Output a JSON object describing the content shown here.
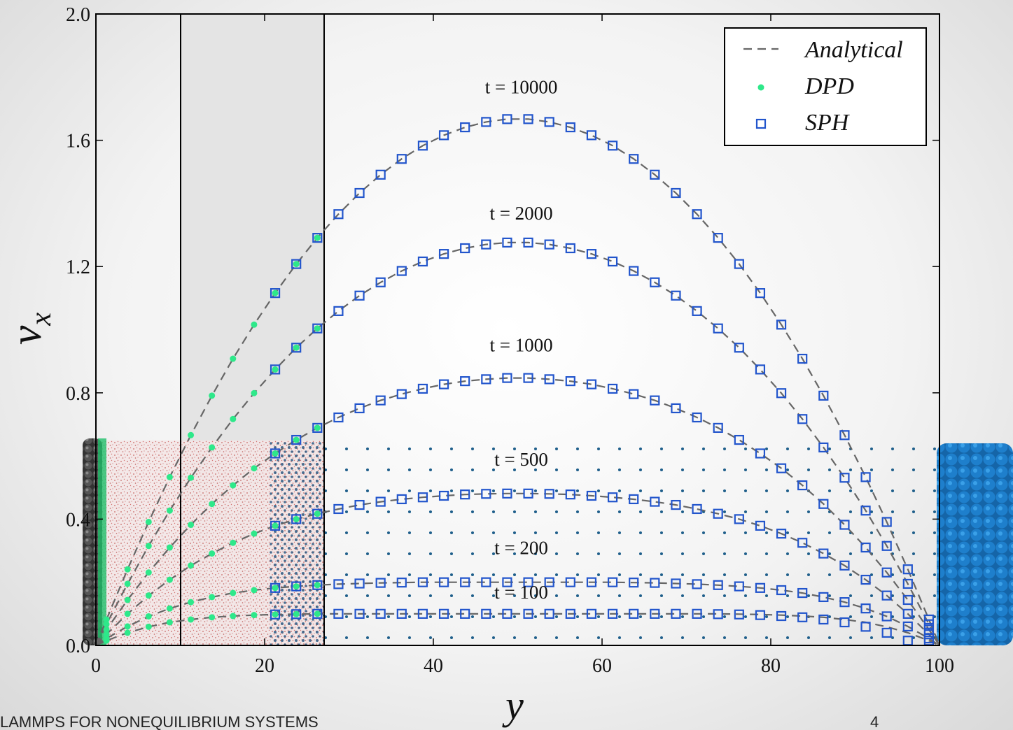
{
  "chart_data": {
    "type": "line",
    "xlabel": "y",
    "ylabel": "v",
    "ylabel_sub": "x",
    "xlim": [
      0,
      100
    ],
    "ylim": [
      0,
      2
    ],
    "xticks": [
      0,
      20,
      40,
      60,
      80,
      100
    ],
    "yticks": [
      {
        "value": 0,
        "label": "0.0"
      },
      0.4,
      0.8,
      1.2,
      1.6,
      {
        "value": 2,
        "label": "2.0"
      }
    ],
    "legend": "upper right",
    "annotations": [
      "t = 100",
      "t = 200",
      "t = 500",
      "t = 1000",
      "t = 2000",
      "t = 10000"
    ],
    "series": [
      {
        "name": "Analytical",
        "color": "#666666",
        "style": "dashed",
        "x": [
          0,
          1.25,
          3.75,
          6.25,
          8.75,
          11.25,
          13.75,
          16.25,
          18.75,
          21.25,
          23.75,
          26.25,
          28.75,
          31.25,
          33.75,
          36.25,
          38.75,
          41.25,
          43.75,
          46.25,
          48.75,
          51.25,
          53.75,
          56.25,
          58.75,
          61.25,
          63.75,
          66.25,
          68.75,
          71.25,
          73.75,
          76.25,
          78.75,
          81.25,
          83.75,
          86.25,
          88.75,
          91.25,
          93.75,
          96.25,
          98.75,
          100
        ],
        "curves": [
          [
            0,
            0.015,
            0.04,
            0.059,
            0.073,
            0.082,
            0.089,
            0.093,
            0.096,
            0.098,
            0.099,
            0.1,
            0.1,
            0.1,
            0.1,
            0.1,
            0.1,
            0.1,
            0.1,
            0.1,
            0.1,
            0.1,
            0.1,
            0.1,
            0.1,
            0.1,
            0.1,
            0.1,
            0.1,
            0.1,
            0.1,
            0.099,
            0.098,
            0.096,
            0.093,
            0.089,
            0.082,
            0.073,
            0.059,
            0.04,
            0.015,
            0
          ],
          [
            0,
            0.022,
            0.06,
            0.092,
            0.117,
            0.137,
            0.153,
            0.166,
            0.175,
            0.182,
            0.187,
            0.191,
            0.194,
            0.196,
            0.198,
            0.199,
            0.2,
            0.2,
            0.2,
            0.2,
            0.2,
            0.2,
            0.2,
            0.2,
            0.2,
            0.2,
            0.199,
            0.198,
            0.196,
            0.194,
            0.191,
            0.187,
            0.182,
            0.175,
            0.166,
            0.153,
            0.137,
            0.117,
            0.092,
            0.06,
            0.022,
            0
          ],
          [
            0,
            0.035,
            0.1,
            0.158,
            0.208,
            0.253,
            0.291,
            0.325,
            0.354,
            0.379,
            0.4,
            0.417,
            0.432,
            0.445,
            0.455,
            0.463,
            0.469,
            0.474,
            0.478,
            0.48,
            0.481,
            0.481,
            0.48,
            0.478,
            0.474,
            0.469,
            0.463,
            0.455,
            0.445,
            0.432,
            0.417,
            0.4,
            0.379,
            0.354,
            0.325,
            0.291,
            0.253,
            0.208,
            0.158,
            0.1,
            0.035,
            0
          ],
          [
            0,
            0.05,
            0.144,
            0.231,
            0.31,
            0.382,
            0.448,
            0.507,
            0.561,
            0.608,
            0.651,
            0.689,
            0.722,
            0.751,
            0.776,
            0.796,
            0.813,
            0.827,
            0.837,
            0.843,
            0.847,
            0.847,
            0.843,
            0.837,
            0.827,
            0.813,
            0.796,
            0.776,
            0.751,
            0.722,
            0.689,
            0.651,
            0.608,
            0.561,
            0.507,
            0.448,
            0.382,
            0.31,
            0.231,
            0.144,
            0.05,
            0
          ],
          [
            0,
            0.067,
            0.195,
            0.315,
            0.427,
            0.531,
            0.627,
            0.717,
            0.799,
            0.874,
            0.943,
            1.004,
            1.059,
            1.108,
            1.15,
            1.186,
            1.216,
            1.24,
            1.258,
            1.27,
            1.276,
            1.276,
            1.27,
            1.258,
            1.24,
            1.216,
            1.186,
            1.15,
            1.108,
            1.059,
            1.004,
            0.943,
            0.874,
            0.799,
            0.717,
            0.627,
            0.531,
            0.427,
            0.315,
            0.195,
            0.067,
            0
          ],
          [
            0,
            0.082,
            0.241,
            0.391,
            0.533,
            0.666,
            0.791,
            0.908,
            1.016,
            1.116,
            1.208,
            1.291,
            1.366,
            1.433,
            1.491,
            1.541,
            1.583,
            1.616,
            1.641,
            1.658,
            1.667,
            1.667,
            1.658,
            1.641,
            1.616,
            1.583,
            1.541,
            1.491,
            1.433,
            1.366,
            1.291,
            1.208,
            1.116,
            1.016,
            0.908,
            0.791,
            0.666,
            0.533,
            0.391,
            0.241,
            0.082,
            0
          ]
        ]
      },
      {
        "name": "DPD",
        "color": "#2ee88a",
        "style": "dots",
        "x": [
          1.25,
          3.75,
          6.25,
          8.75,
          11.25,
          13.75,
          16.25,
          18.75,
          21.25,
          23.75,
          26.25
        ],
        "curves": [
          [
            0.015,
            0.04,
            0.059,
            0.073,
            0.082,
            0.089,
            0.093,
            0.096,
            0.098,
            0.099,
            0.1
          ],
          [
            0.022,
            0.06,
            0.092,
            0.117,
            0.137,
            0.153,
            0.166,
            0.175,
            0.182,
            0.187,
            0.191
          ],
          [
            0.035,
            0.1,
            0.158,
            0.208,
            0.253,
            0.291,
            0.325,
            0.354,
            0.379,
            0.4,
            0.417
          ],
          [
            0.05,
            0.144,
            0.231,
            0.31,
            0.382,
            0.448,
            0.507,
            0.561,
            0.608,
            0.651,
            0.689
          ],
          [
            0.067,
            0.195,
            0.315,
            0.427,
            0.531,
            0.627,
            0.717,
            0.799,
            0.874,
            0.943,
            1.004
          ],
          [
            0.082,
            0.241,
            0.391,
            0.533,
            0.666,
            0.791,
            0.908,
            1.016,
            1.116,
            1.208,
            1.291
          ]
        ]
      },
      {
        "name": "SPH",
        "color": "#2255cc",
        "style": "open-squares",
        "x": [
          21.25,
          23.75,
          26.25,
          28.75,
          31.25,
          33.75,
          36.25,
          38.75,
          41.25,
          43.75,
          46.25,
          48.75,
          51.25,
          53.75,
          56.25,
          58.75,
          61.25,
          63.75,
          66.25,
          68.75,
          71.25,
          73.75,
          76.25,
          78.75,
          81.25,
          83.75,
          86.25,
          88.75,
          91.25,
          93.75,
          96.25,
          98.75
        ],
        "curves": [
          [
            0.098,
            0.099,
            0.1,
            0.1,
            0.1,
            0.1,
            0.1,
            0.1,
            0.1,
            0.1,
            0.1,
            0.1,
            0.1,
            0.1,
            0.1,
            0.1,
            0.1,
            0.1,
            0.1,
            0.1,
            0.1,
            0.099,
            0.098,
            0.096,
            0.093,
            0.089,
            0.082,
            0.073,
            0.059,
            0.04,
            0.015,
            0.015
          ],
          [
            0.182,
            0.187,
            0.191,
            0.194,
            0.196,
            0.198,
            0.199,
            0.2,
            0.2,
            0.2,
            0.2,
            0.2,
            0.2,
            0.2,
            0.2,
            0.2,
            0.2,
            0.199,
            0.198,
            0.196,
            0.194,
            0.191,
            0.187,
            0.182,
            0.175,
            0.166,
            0.153,
            0.137,
            0.117,
            0.092,
            0.06,
            0.022
          ],
          [
            0.379,
            0.4,
            0.417,
            0.432,
            0.445,
            0.455,
            0.463,
            0.469,
            0.474,
            0.478,
            0.48,
            0.481,
            0.481,
            0.48,
            0.478,
            0.474,
            0.469,
            0.463,
            0.455,
            0.445,
            0.432,
            0.417,
            0.4,
            0.379,
            0.354,
            0.325,
            0.291,
            0.253,
            0.208,
            0.158,
            0.1,
            0.035
          ],
          [
            0.608,
            0.651,
            0.689,
            0.722,
            0.751,
            0.776,
            0.796,
            0.813,
            0.827,
            0.837,
            0.843,
            0.847,
            0.847,
            0.843,
            0.837,
            0.827,
            0.813,
            0.796,
            0.776,
            0.751,
            0.722,
            0.689,
            0.651,
            0.608,
            0.561,
            0.507,
            0.448,
            0.382,
            0.31,
            0.231,
            0.144,
            0.05
          ],
          [
            0.874,
            0.943,
            1.004,
            1.059,
            1.108,
            1.15,
            1.186,
            1.216,
            1.24,
            1.258,
            1.27,
            1.276,
            1.276,
            1.27,
            1.258,
            1.24,
            1.216,
            1.186,
            1.15,
            1.108,
            1.059,
            1.004,
            0.943,
            0.874,
            0.799,
            0.717,
            0.627,
            0.531,
            0.427,
            0.315,
            0.195,
            0.067
          ],
          [
            1.116,
            1.208,
            1.291,
            1.366,
            1.433,
            1.491,
            1.541,
            1.583,
            1.616,
            1.641,
            1.658,
            1.667,
            1.667,
            1.658,
            1.641,
            1.616,
            1.583,
            1.541,
            1.491,
            1.433,
            1.366,
            1.291,
            1.208,
            1.116,
            1.016,
            0.908,
            0.791,
            0.666,
            0.533,
            0.391,
            0.241,
            0.082
          ]
        ]
      }
    ]
  },
  "footer": {
    "text": "LAMMPS FOR NONEQUILIBRIUM SYSTEMS",
    "page": 4
  }
}
